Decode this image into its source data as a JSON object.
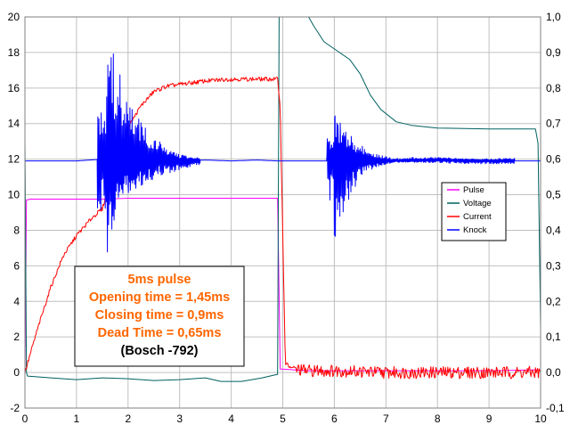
{
  "chart_data": {
    "type": "line",
    "x_axis": {
      "min": 0,
      "max": 10,
      "ticks": [
        0,
        1,
        2,
        3,
        4,
        5,
        6,
        7,
        8,
        9,
        10
      ]
    },
    "y_left": {
      "min": -2,
      "max": 20,
      "ticks": [
        -2,
        0,
        2,
        4,
        6,
        8,
        10,
        12,
        14,
        16,
        18,
        20
      ],
      "labels": [
        "-2",
        "0",
        "2",
        "4",
        "6",
        "8",
        "10",
        "12",
        "14",
        "16",
        "18",
        "20"
      ]
    },
    "y_right": {
      "min": -0.1,
      "max": 1.0,
      "ticks": [
        -0.1,
        0,
        0.1,
        0.2,
        0.3,
        0.4,
        0.5,
        0.6,
        0.7,
        0.8,
        0.9,
        1.0
      ],
      "labels": [
        "-0,1",
        "0,0",
        "0,1",
        "0,2",
        "0,3",
        "0,4",
        "0,5",
        "0,6",
        "0,7",
        "0,8",
        "0,9",
        "1,0"
      ]
    },
    "grid": true,
    "legend": {
      "placement": "right"
    },
    "series": [
      {
        "name": "Pulse",
        "color": "#ff00ff",
        "axis": "left",
        "points": [
          [
            0,
            0
          ],
          [
            0.03,
            9.7
          ],
          [
            0.1,
            9.75
          ],
          [
            1.5,
            9.75
          ],
          [
            2.0,
            9.8
          ],
          [
            3.0,
            9.8
          ],
          [
            4.0,
            9.8
          ],
          [
            4.9,
            9.8
          ],
          [
            4.95,
            0.2
          ],
          [
            5.5,
            0.1
          ],
          [
            7.0,
            0.1
          ],
          [
            8.0,
            0.1
          ],
          [
            9.0,
            0.1
          ],
          [
            9.95,
            0.15
          ]
        ]
      },
      {
        "name": "Voltage",
        "color": "#006060",
        "axis": "left",
        "points": [
          [
            0,
            13.1
          ],
          [
            0.03,
            0
          ],
          [
            0.05,
            -0.2
          ],
          [
            0.5,
            -0.3
          ],
          [
            1.0,
            -0.4
          ],
          [
            1.5,
            -0.3
          ],
          [
            2.0,
            -0.35
          ],
          [
            2.5,
            -0.45
          ],
          [
            3.0,
            -0.4
          ],
          [
            3.5,
            -0.3
          ],
          [
            3.8,
            -0.5
          ],
          [
            4.2,
            -0.5
          ],
          [
            4.6,
            -0.3
          ],
          [
            4.9,
            -0.1
          ],
          [
            4.93,
            20
          ],
          [
            5.0,
            20
          ],
          [
            5.5,
            20
          ],
          [
            5.6,
            19.5
          ],
          [
            5.8,
            18.6
          ],
          [
            6.0,
            18.2
          ],
          [
            6.3,
            17.6
          ],
          [
            6.5,
            16.8
          ],
          [
            6.7,
            15.6
          ],
          [
            6.9,
            14.8
          ],
          [
            7.2,
            14.1
          ],
          [
            7.5,
            13.9
          ],
          [
            8.0,
            13.75
          ],
          [
            9.0,
            13.7
          ],
          [
            9.9,
            13.7
          ],
          [
            9.95,
            12.9
          ],
          [
            10.0,
            2.5
          ]
        ]
      },
      {
        "name": "Current",
        "color": "#ff0000",
        "axis": "left",
        "points": [
          [
            0,
            0
          ],
          [
            0.25,
            2.5
          ],
          [
            0.5,
            4.8
          ],
          [
            0.75,
            6.6
          ],
          [
            1.0,
            7.7
          ],
          [
            1.3,
            8.7
          ],
          [
            1.5,
            9.2
          ],
          [
            1.75,
            11.8
          ],
          [
            2.0,
            13.8
          ],
          [
            2.25,
            15.0
          ],
          [
            2.5,
            15.8
          ],
          [
            2.75,
            16.1
          ],
          [
            3.0,
            16.2
          ],
          [
            3.5,
            16.4
          ],
          [
            4.0,
            16.5
          ],
          [
            4.5,
            16.5
          ],
          [
            4.9,
            16.5
          ],
          [
            4.95,
            15.0
          ],
          [
            5.05,
            0.5
          ],
          [
            5.2,
            0.2
          ],
          [
            5.5,
            0.1
          ],
          [
            6.0,
            0.1
          ],
          [
            7.0,
            0
          ],
          [
            8.0,
            0
          ],
          [
            9.0,
            0
          ],
          [
            10.0,
            0
          ]
        ]
      },
      {
        "name": "Knock",
        "color": "#0000ff",
        "axis": "left",
        "points": [
          [
            0,
            11.9
          ],
          [
            1.0,
            11.9
          ],
          [
            1.5,
            12.0
          ],
          [
            2.0,
            11.9
          ],
          [
            2.5,
            12.0
          ],
          [
            3.0,
            11.9
          ],
          [
            3.5,
            11.95
          ],
          [
            4.0,
            11.9
          ],
          [
            4.5,
            11.95
          ],
          [
            4.9,
            11.9
          ],
          [
            5.0,
            11.9
          ],
          [
            5.5,
            11.9
          ],
          [
            6.0,
            11.9
          ],
          [
            6.5,
            11.9
          ],
          [
            7.0,
            11.9
          ],
          [
            8.0,
            11.95
          ],
          [
            9.0,
            11.9
          ],
          [
            10.0,
            11.9
          ]
        ]
      }
    ],
    "annotation": {
      "lines": [
        "5ms pulse",
        "Opening time =  1,45ms",
        "Closing time = 0,9ms",
        "Dead Time = 0,65ms",
        "(Bosch -792)"
      ],
      "color": "#ff6600",
      "last_line_color": "#000000"
    }
  }
}
